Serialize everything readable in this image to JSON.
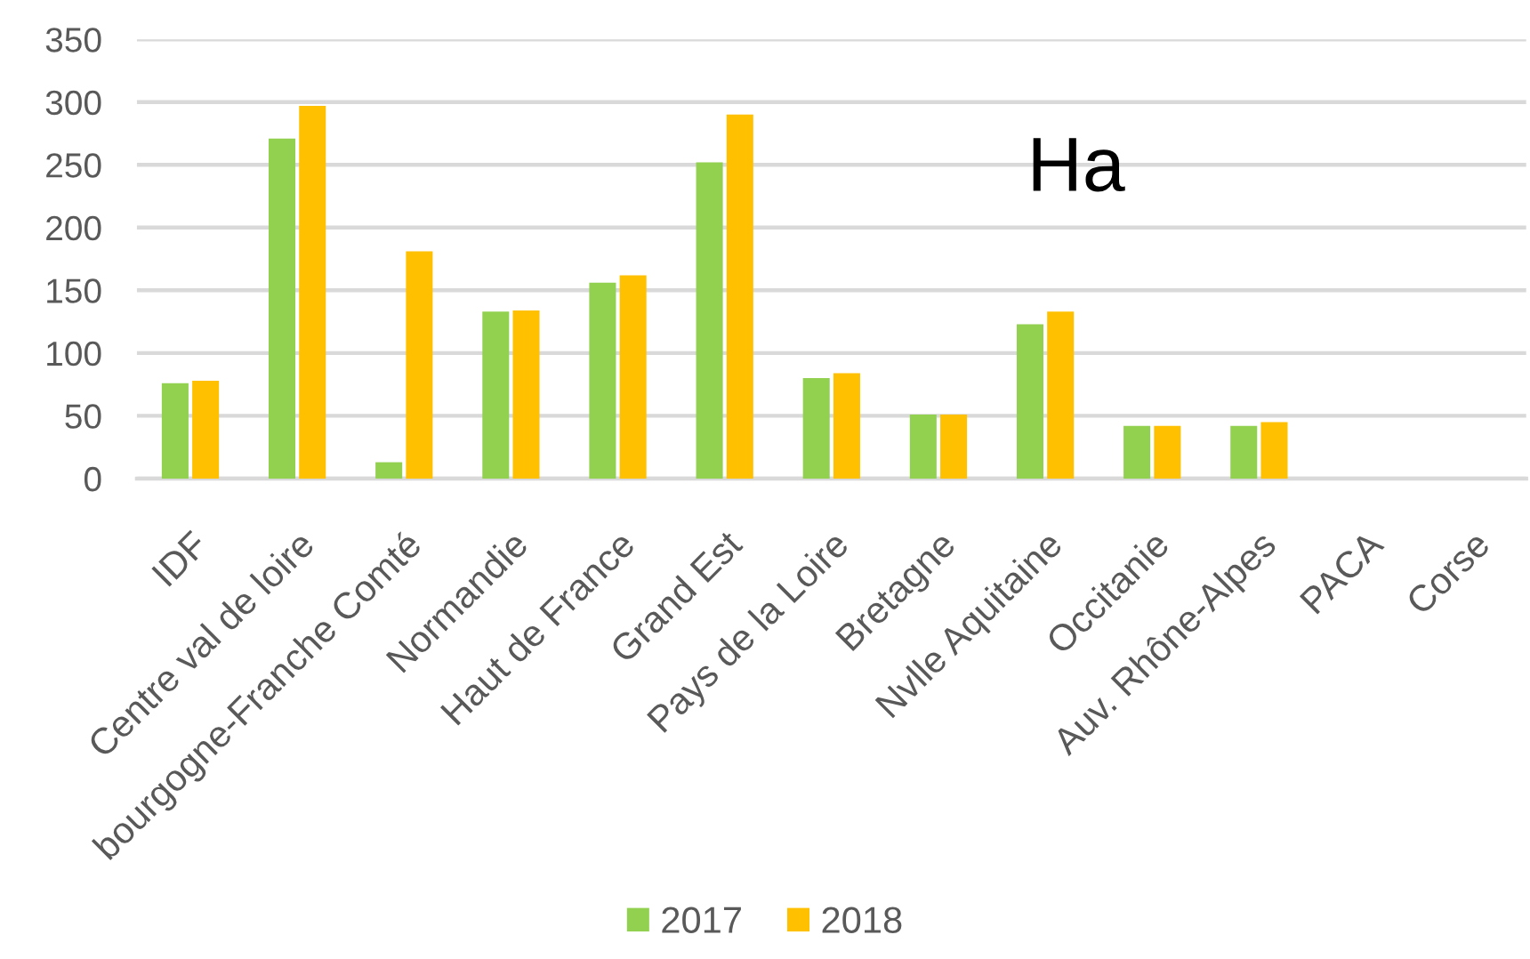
{
  "chart_data": {
    "type": "bar",
    "categories": [
      "IDF",
      "Centre val de loire",
      "bourgogne-Franche Comté",
      "Normandie",
      "Haut de France",
      "Grand Est",
      "Pays de la Loire",
      "Bretagne",
      "Nvlle Aquitaine",
      "Occitanie",
      "Auv. Rhône-Alpes",
      "PACA",
      "Corse"
    ],
    "series": [
      {
        "name": "2017",
        "color": "#92d050",
        "values": [
          76,
          271,
          13,
          133,
          156,
          252,
          80,
          51,
          123,
          42,
          42,
          null,
          null
        ]
      },
      {
        "name": "2018",
        "color": "#ffc000",
        "values": [
          78,
          297,
          181,
          134,
          162,
          290,
          84,
          51,
          133,
          42,
          45,
          null,
          null
        ]
      }
    ],
    "ylim": [
      0,
      350
    ],
    "yticks": [
      0,
      50,
      100,
      150,
      200,
      250,
      300,
      350
    ],
    "grid": "y",
    "legend": "bottom",
    "annotations": [
      "Ha"
    ]
  }
}
